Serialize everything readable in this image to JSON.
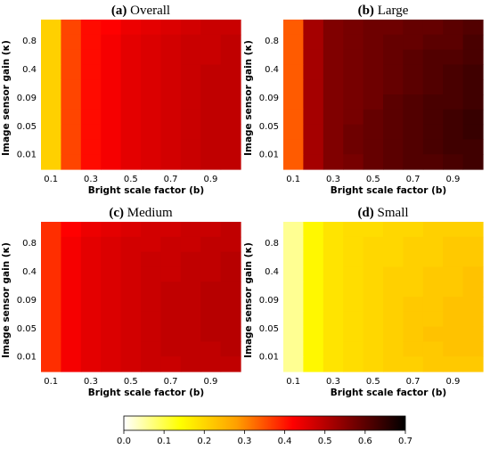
{
  "figure": {
    "colorbar": {
      "ticks": [
        "0.0",
        "0.1",
        "0.2",
        "0.3",
        "0.4",
        "0.5",
        "0.6",
        "0.7"
      ],
      "range": [
        0.0,
        0.7
      ],
      "colormap": [
        "#ffffff",
        "#ffff80",
        "#ffff00",
        "#ffd000",
        "#ffa000",
        "#ff5000",
        "#ff0000",
        "#c00000",
        "#800000",
        "#400000",
        "#000000"
      ]
    }
  },
  "chart_data": [
    {
      "type": "heatmap",
      "title_letter": "(a)",
      "title_text": "Overall",
      "xlabel": "Bright scale factor (b)",
      "ylabel": "Image sensor gain (κ)",
      "x_tick_labels": [
        "0.1",
        "0.3",
        "0.5",
        "0.7",
        "0.9"
      ],
      "y_tick_labels": [
        "0.8",
        "0.4",
        "0.09",
        "0.05",
        "0.01"
      ],
      "values": [
        [
          0.21,
          0.36,
          0.41,
          0.42,
          0.44,
          0.45,
          0.46,
          0.47,
          0.48,
          0.48
        ],
        [
          0.21,
          0.36,
          0.41,
          0.43,
          0.45,
          0.46,
          0.47,
          0.48,
          0.48,
          0.49
        ],
        [
          0.21,
          0.36,
          0.41,
          0.43,
          0.45,
          0.46,
          0.47,
          0.48,
          0.48,
          0.49
        ],
        [
          0.21,
          0.36,
          0.41,
          0.43,
          0.45,
          0.46,
          0.47,
          0.48,
          0.49,
          0.49
        ],
        [
          0.21,
          0.36,
          0.41,
          0.43,
          0.45,
          0.46,
          0.47,
          0.48,
          0.49,
          0.49
        ],
        [
          0.21,
          0.36,
          0.41,
          0.43,
          0.45,
          0.46,
          0.47,
          0.48,
          0.49,
          0.49
        ],
        [
          0.21,
          0.36,
          0.41,
          0.43,
          0.45,
          0.46,
          0.47,
          0.48,
          0.49,
          0.49
        ],
        [
          0.21,
          0.36,
          0.41,
          0.43,
          0.45,
          0.46,
          0.47,
          0.48,
          0.49,
          0.49
        ],
        [
          0.21,
          0.36,
          0.41,
          0.43,
          0.45,
          0.46,
          0.47,
          0.48,
          0.49,
          0.49
        ],
        [
          0.21,
          0.36,
          0.41,
          0.43,
          0.45,
          0.46,
          0.47,
          0.48,
          0.49,
          0.49
        ]
      ]
    },
    {
      "type": "heatmap",
      "title_letter": "(b)",
      "title_text": "Large",
      "xlabel": "Bright scale factor (b)",
      "ylabel": "Image sensor gain (κ)",
      "x_tick_labels": [
        "0.1",
        "0.3",
        "0.5",
        "0.7",
        "0.9"
      ],
      "y_tick_labels": [
        "0.8",
        "0.4",
        "0.09",
        "0.05",
        "0.01"
      ],
      "values": [
        [
          0.34,
          0.52,
          0.56,
          0.57,
          0.58,
          0.58,
          0.59,
          0.59,
          0.6,
          0.61
        ],
        [
          0.34,
          0.52,
          0.56,
          0.57,
          0.58,
          0.59,
          0.59,
          0.6,
          0.6,
          0.62
        ],
        [
          0.34,
          0.52,
          0.56,
          0.57,
          0.58,
          0.59,
          0.6,
          0.61,
          0.61,
          0.62
        ],
        [
          0.34,
          0.52,
          0.56,
          0.57,
          0.58,
          0.59,
          0.6,
          0.61,
          0.62,
          0.63
        ],
        [
          0.34,
          0.52,
          0.56,
          0.57,
          0.58,
          0.59,
          0.6,
          0.61,
          0.62,
          0.63
        ],
        [
          0.34,
          0.52,
          0.56,
          0.57,
          0.58,
          0.6,
          0.61,
          0.62,
          0.62,
          0.63
        ],
        [
          0.34,
          0.52,
          0.56,
          0.57,
          0.59,
          0.6,
          0.61,
          0.62,
          0.63,
          0.64
        ],
        [
          0.34,
          0.52,
          0.56,
          0.58,
          0.59,
          0.6,
          0.61,
          0.62,
          0.63,
          0.64
        ],
        [
          0.34,
          0.52,
          0.56,
          0.58,
          0.59,
          0.6,
          0.61,
          0.62,
          0.63,
          0.63
        ],
        [
          0.34,
          0.52,
          0.56,
          0.57,
          0.59,
          0.6,
          0.61,
          0.61,
          0.62,
          0.63
        ]
      ]
    },
    {
      "type": "heatmap",
      "title_letter": "(c)",
      "title_text": "Medium",
      "xlabel": "Bright scale factor (b)",
      "ylabel": "Image sensor gain (κ)",
      "x_tick_labels": [
        "0.1",
        "0.3",
        "0.5",
        "0.7",
        "0.9"
      ],
      "y_tick_labels": [
        "0.8",
        "0.4",
        "0.09",
        "0.05",
        "0.01"
      ],
      "values": [
        [
          0.38,
          0.42,
          0.44,
          0.45,
          0.46,
          0.47,
          0.47,
          0.48,
          0.48,
          0.49
        ],
        [
          0.38,
          0.43,
          0.45,
          0.46,
          0.47,
          0.47,
          0.48,
          0.48,
          0.49,
          0.49
        ],
        [
          0.38,
          0.43,
          0.45,
          0.46,
          0.47,
          0.48,
          0.48,
          0.49,
          0.49,
          0.5
        ],
        [
          0.38,
          0.43,
          0.45,
          0.46,
          0.47,
          0.48,
          0.48,
          0.49,
          0.49,
          0.5
        ],
        [
          0.38,
          0.43,
          0.45,
          0.46,
          0.47,
          0.48,
          0.49,
          0.49,
          0.5,
          0.5
        ],
        [
          0.38,
          0.43,
          0.45,
          0.46,
          0.47,
          0.48,
          0.49,
          0.49,
          0.5,
          0.5
        ],
        [
          0.38,
          0.43,
          0.45,
          0.46,
          0.47,
          0.48,
          0.49,
          0.49,
          0.5,
          0.5
        ],
        [
          0.38,
          0.43,
          0.45,
          0.46,
          0.47,
          0.48,
          0.49,
          0.49,
          0.5,
          0.5
        ],
        [
          0.38,
          0.43,
          0.45,
          0.46,
          0.47,
          0.48,
          0.49,
          0.49,
          0.49,
          0.5
        ],
        [
          0.38,
          0.43,
          0.45,
          0.46,
          0.47,
          0.48,
          0.48,
          0.49,
          0.49,
          0.49
        ]
      ]
    },
    {
      "type": "heatmap",
      "title_letter": "(d)",
      "title_text": "Small",
      "xlabel": "Bright scale factor (b)",
      "ylabel": "Image sensor gain (κ)",
      "x_tick_labels": [
        "0.1",
        "0.3",
        "0.5",
        "0.7",
        "0.9"
      ],
      "y_tick_labels": [
        "0.8",
        "0.4",
        "0.09",
        "0.05",
        "0.01"
      ],
      "values": [
        [
          0.06,
          0.15,
          0.18,
          0.19,
          0.19,
          0.2,
          0.2,
          0.21,
          0.21,
          0.21
        ],
        [
          0.06,
          0.15,
          0.18,
          0.19,
          0.2,
          0.2,
          0.21,
          0.21,
          0.22,
          0.22
        ],
        [
          0.06,
          0.15,
          0.18,
          0.19,
          0.2,
          0.2,
          0.21,
          0.21,
          0.22,
          0.22
        ],
        [
          0.06,
          0.15,
          0.18,
          0.19,
          0.2,
          0.21,
          0.21,
          0.22,
          0.22,
          0.23
        ],
        [
          0.06,
          0.15,
          0.18,
          0.19,
          0.2,
          0.21,
          0.21,
          0.22,
          0.22,
          0.23
        ],
        [
          0.06,
          0.15,
          0.18,
          0.19,
          0.2,
          0.21,
          0.22,
          0.22,
          0.23,
          0.23
        ],
        [
          0.06,
          0.15,
          0.18,
          0.19,
          0.2,
          0.21,
          0.22,
          0.22,
          0.23,
          0.23
        ],
        [
          0.06,
          0.15,
          0.18,
          0.19,
          0.2,
          0.21,
          0.22,
          0.23,
          0.23,
          0.23
        ],
        [
          0.06,
          0.15,
          0.18,
          0.19,
          0.2,
          0.21,
          0.22,
          0.22,
          0.23,
          0.23
        ],
        [
          0.06,
          0.15,
          0.18,
          0.19,
          0.2,
          0.21,
          0.21,
          0.22,
          0.22,
          0.22
        ]
      ]
    }
  ]
}
